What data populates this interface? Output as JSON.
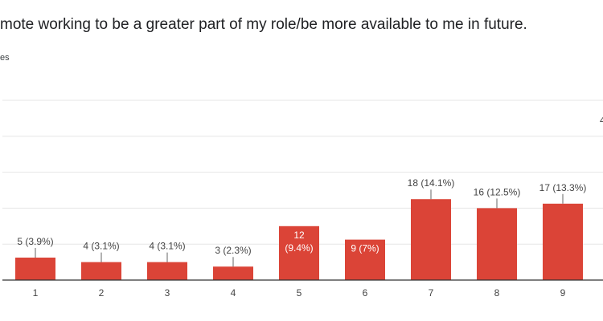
{
  "header": {
    "question": "mote working to be a greater part of my role/be more available to me in future.",
    "responses": "es"
  },
  "colors": {
    "bar": "#db4437",
    "grid": "#e6e6e6",
    "axis": "#333333",
    "label_outside": "#444444",
    "label_inside": "#ffffff"
  },
  "edge_label": "4",
  "chart_data": {
    "type": "bar",
    "categories": [
      "1",
      "2",
      "3",
      "4",
      "5",
      "6",
      "7",
      "8",
      "9"
    ],
    "values": [
      5,
      4,
      4,
      3,
      12,
      9,
      18,
      16,
      17
    ],
    "data_labels": [
      "5 (3.9%)",
      "4 (3.1%)",
      "4 (3.1%)",
      "3 (2.3%)",
      "12 (9.4%)",
      "9 (7%)",
      "18 (14.1%)",
      "16 (12.5%)",
      "17 (13.3%)"
    ],
    "title": "mote working to be a greater part of my role/be more available to me in future.",
    "xlabel": "",
    "ylabel": "",
    "ylim": [
      0,
      40
    ],
    "grid": true,
    "legend": "none"
  }
}
